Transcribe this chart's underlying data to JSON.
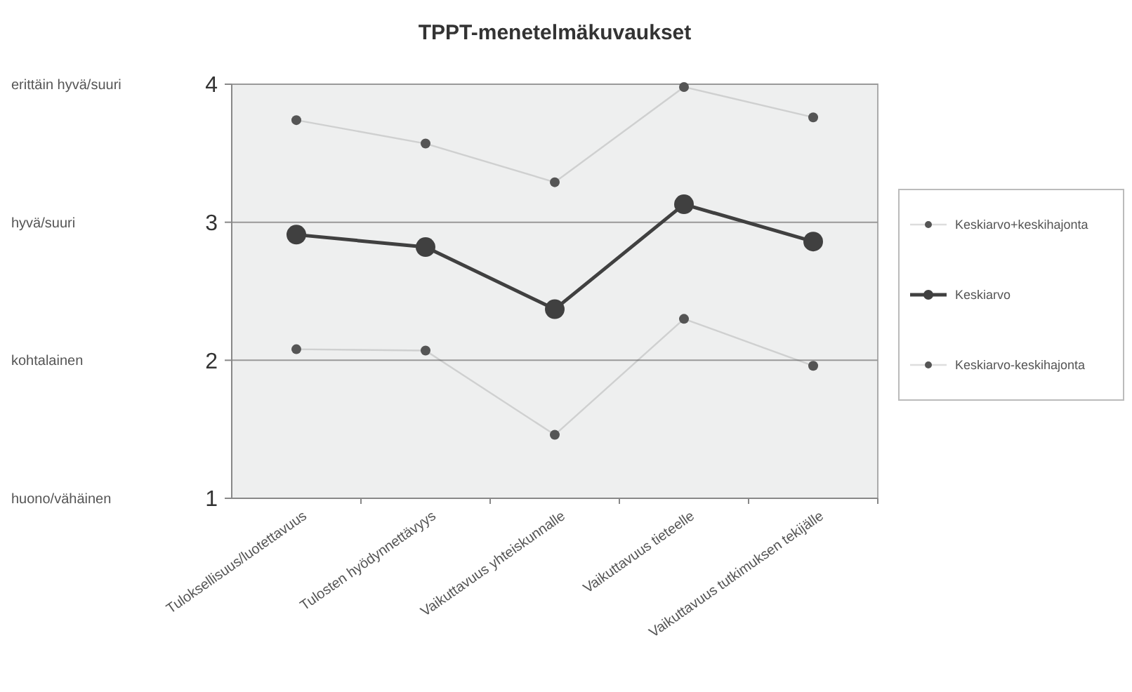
{
  "chart_data": {
    "type": "line",
    "title": "TPPT-menetelmäkuvaukset",
    "categories": [
      "Tuloksellisuus/luotettavuus",
      "Tulosten hyödynnettävyys",
      "Vaikuttavuus yhteiskunnalle",
      "Vaikuttavuus tieteelle",
      "Vaikuttavuus tutkimuksen tekijälle"
    ],
    "series": [
      {
        "name": "Keskiarvo+keskihajonta",
        "color": "#555555",
        "values": [
          3.74,
          3.57,
          3.29,
          3.98,
          3.76
        ]
      },
      {
        "name": "Keskiarvo",
        "color": "#404040",
        "values": [
          2.91,
          2.82,
          2.37,
          3.13,
          2.86
        ]
      },
      {
        "name": "Keskiarvo-keskihajonta",
        "color": "#555555",
        "values": [
          2.08,
          2.07,
          1.46,
          2.3,
          1.96
        ]
      }
    ],
    "ylim": [
      1,
      4
    ],
    "yticks": [
      1,
      2,
      3,
      4
    ],
    "annotations": [
      "huono/vähäinen",
      "kohtalainen",
      "hyvä/suuri",
      "erittäin hyvä/suuri"
    ],
    "grid": "y",
    "legend": "right",
    "marker": "circle",
    "line_style": "solid"
  }
}
